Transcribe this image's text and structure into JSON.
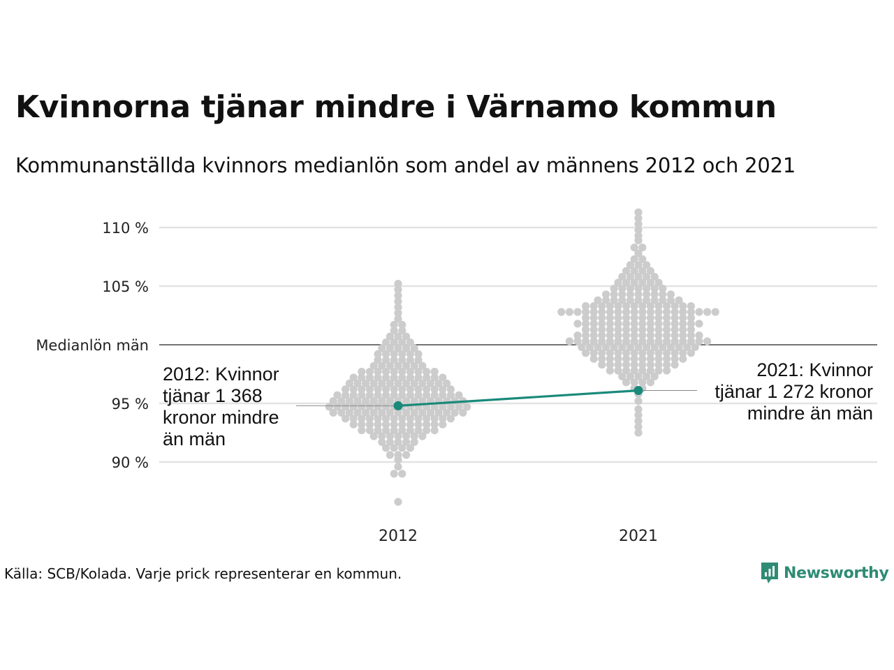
{
  "title": "Kvinnorna tjänar mindre i Värnamo kommun",
  "subtitle": "Kommunanställda kvinnors medianlön som andel av männens 2012 och 2021",
  "source": "Källa: SCB/Kolada. Varje prick representerar en kommun.",
  "brand": {
    "name": "Newsworthy",
    "color": "#2e8b74"
  },
  "colors": {
    "dots": "#cccccc",
    "highlight": "#1a8a7a",
    "grid": "#e2e2e2",
    "reference": "#222222"
  },
  "chart_data": {
    "type": "scatter",
    "title": "Kvinnorna tjänar mindre i Värnamo kommun",
    "subtitle": "Kommunanställda kvinnors medianlön som andel av männens 2012 och 2021",
    "categories": [
      "2012",
      "2021"
    ],
    "ylim": [
      86,
      112
    ],
    "yticks": [
      {
        "value": 110,
        "label": "110 %"
      },
      {
        "value": 105,
        "label": "105 %"
      },
      {
        "value": 100,
        "label": "Medianlön män"
      },
      {
        "value": 95,
        "label": "95 %"
      },
      {
        "value": 90,
        "label": "90 %"
      }
    ],
    "reference_line": {
      "value": 100,
      "label": "Medianlön män"
    },
    "distributions": [
      {
        "category": "2012",
        "bins": [
          [
            86.6,
            1
          ],
          [
            89.0,
            2
          ],
          [
            89.6,
            1
          ],
          [
            90.2,
            1
          ],
          [
            90.6,
            3
          ],
          [
            91.2,
            4
          ],
          [
            91.7,
            5
          ],
          [
            92.2,
            7
          ],
          [
            92.7,
            10
          ],
          [
            93.2,
            12
          ],
          [
            93.7,
            14
          ],
          [
            94.2,
            17
          ],
          [
            94.7,
            18
          ],
          [
            95.2,
            17
          ],
          [
            95.7,
            16
          ],
          [
            96.2,
            14
          ],
          [
            96.7,
            13
          ],
          [
            97.2,
            12
          ],
          [
            97.7,
            10
          ],
          [
            98.2,
            7
          ],
          [
            98.7,
            6
          ],
          [
            99.2,
            6
          ],
          [
            99.7,
            5
          ],
          [
            100.2,
            4
          ],
          [
            100.7,
            3
          ],
          [
            101.2,
            2
          ],
          [
            101.7,
            2
          ],
          [
            102.2,
            1
          ],
          [
            102.7,
            1
          ],
          [
            103.2,
            1
          ],
          [
            103.7,
            1
          ],
          [
            104.2,
            1
          ],
          [
            104.7,
            1
          ],
          [
            105.2,
            1
          ]
        ]
      },
      {
        "category": "2021",
        "bins": [
          [
            92.5,
            1
          ],
          [
            93.0,
            1
          ],
          [
            93.5,
            1
          ],
          [
            94.0,
            1
          ],
          [
            94.5,
            1
          ],
          [
            95.2,
            1
          ],
          [
            95.8,
            1
          ],
          [
            96.3,
            2
          ],
          [
            96.8,
            4
          ],
          [
            97.3,
            5
          ],
          [
            97.8,
            8
          ],
          [
            98.3,
            10
          ],
          [
            98.8,
            12
          ],
          [
            99.3,
            14
          ],
          [
            99.8,
            15
          ],
          [
            100.3,
            18
          ],
          [
            100.8,
            16
          ],
          [
            101.3,
            14
          ],
          [
            101.8,
            16
          ],
          [
            102.3,
            14
          ],
          [
            102.8,
            20
          ],
          [
            103.3,
            14
          ],
          [
            103.8,
            11
          ],
          [
            104.3,
            9
          ],
          [
            104.8,
            7
          ],
          [
            105.3,
            6
          ],
          [
            105.8,
            5
          ],
          [
            106.3,
            4
          ],
          [
            106.8,
            3
          ],
          [
            107.3,
            2
          ],
          [
            107.8,
            1
          ],
          [
            108.3,
            2
          ],
          [
            108.9,
            1
          ],
          [
            109.3,
            1
          ],
          [
            109.8,
            1
          ],
          [
            110.3,
            1
          ],
          [
            110.8,
            1
          ],
          [
            111.3,
            1
          ]
        ]
      }
    ],
    "highlight": {
      "name": "Värnamo",
      "points": [
        {
          "category": "2012",
          "value": 94.8
        },
        {
          "category": "2021",
          "value": 96.1
        }
      ]
    },
    "annotations": [
      {
        "category": "2012",
        "value": 94.8,
        "side": "left",
        "lines": [
          "2012: Kvinnor",
          "tjänar 1 368",
          "kronor mindre",
          "än män"
        ]
      },
      {
        "category": "2021",
        "value": 96.1,
        "side": "right",
        "lines": [
          "2021: Kvinnor",
          "tjänar 1 272 kronor",
          "mindre än män"
        ]
      }
    ],
    "grid": true
  }
}
